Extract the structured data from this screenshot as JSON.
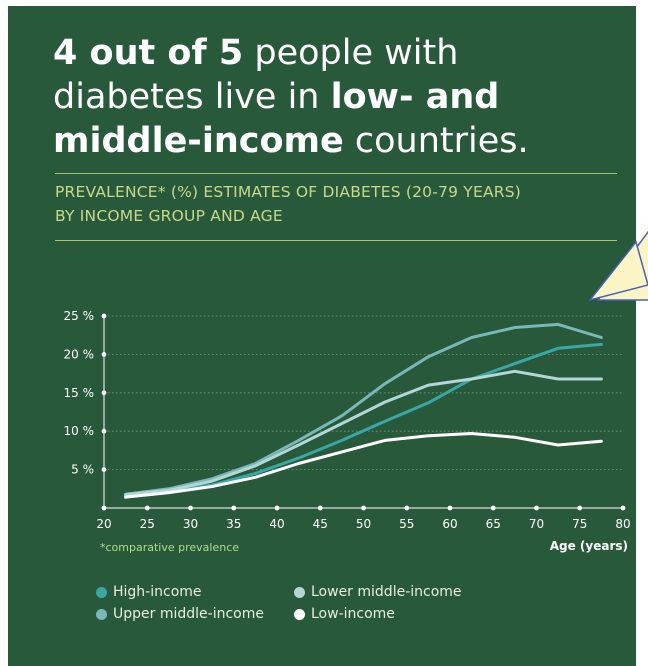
{
  "headline": {
    "part1_bold": "4 out of 5",
    "part2": " people with diabetes live in ",
    "part3_bold": "low- and middle-income",
    "part4": " countries."
  },
  "subtitle": {
    "line1": "PREVALENCE* (%) ESTIMATES OF DIABETES (20-79 YEARS)",
    "line2": "BY INCOME GROUP AND AGE"
  },
  "note": "*comparative prevalence",
  "colors": {
    "background": "#28593a",
    "high_income": "#3aa6a6",
    "upper_middle_income": "#79b8b8",
    "lower_middle_income": "#b4d6d6",
    "low_income": "#ffffff"
  },
  "chart_data": {
    "type": "line",
    "title": "PREVALENCE* (%) ESTIMATES OF DIABETES (20-79 YEARS) BY INCOME GROUP AND AGE",
    "xlabel": "Age (years)",
    "ylabel": "",
    "xlim": [
      20,
      80
    ],
    "ylim": [
      0,
      25
    ],
    "x_ticks": [
      "20",
      "25",
      "30",
      "35",
      "40",
      "45",
      "50",
      "55",
      "60",
      "65",
      "70",
      "75",
      "80"
    ],
    "y_ticks": [
      "5 %",
      "10 %",
      "15 %",
      "20 %",
      "25 %"
    ],
    "grid": true,
    "legend_position": "bottom",
    "x": [
      22.5,
      27.5,
      32.5,
      37.5,
      42.5,
      47.5,
      52.5,
      57.5,
      62.5,
      67.5,
      72.5,
      77.5
    ],
    "series": [
      {
        "name": "High-income",
        "color": "#3aa6a6",
        "values": [
          1.6,
          2.2,
          3.0,
          4.5,
          6.5,
          8.8,
          11.3,
          13.7,
          16.8,
          18.8,
          20.8,
          21.3
        ]
      },
      {
        "name": "Upper middle-income",
        "color": "#79b8b8",
        "values": [
          1.8,
          2.5,
          3.8,
          5.8,
          8.8,
          12.0,
          16.2,
          19.7,
          22.2,
          23.5,
          23.9,
          22.2
        ]
      },
      {
        "name": "Lower middle-income",
        "color": "#b4d6d6",
        "values": [
          1.7,
          2.3,
          3.5,
          5.5,
          8.2,
          11.0,
          13.8,
          16.0,
          16.8,
          17.8,
          16.8,
          16.8
        ]
      },
      {
        "name": "Low-income",
        "color": "#ffffff",
        "values": [
          1.4,
          2.0,
          2.8,
          4.0,
          5.8,
          7.3,
          8.8,
          9.4,
          9.7,
          9.2,
          8.2,
          8.7
        ]
      }
    ]
  },
  "legend": {
    "items": [
      {
        "label": "High-income",
        "color": "#3aa6a6"
      },
      {
        "label": "Lower middle-income",
        "color": "#b4d6d6"
      },
      {
        "label": "Upper middle-income",
        "color": "#79b8b8"
      },
      {
        "label": "Low-income",
        "color": "#ffffff"
      }
    ]
  }
}
